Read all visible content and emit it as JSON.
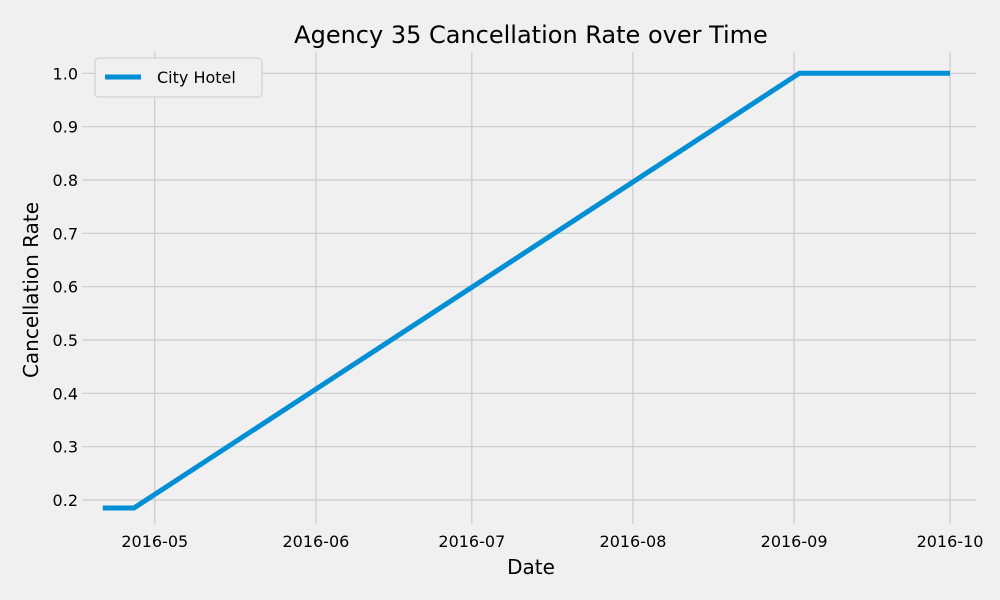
{
  "chart_data": {
    "type": "line",
    "title": "Agency 35 Cancellation Rate over Time",
    "xlabel": "Date",
    "ylabel": "Cancellation Rate",
    "x_ticks": [
      "2016-05",
      "2016-06",
      "2016-07",
      "2016-08",
      "2016-09",
      "2016-10"
    ],
    "y_ticks": [
      "0.2",
      "0.3",
      "0.4",
      "0.5",
      "0.6",
      "0.7",
      "0.8",
      "0.9",
      "1.0"
    ],
    "xlim": [
      "2016-04-17",
      "2016-10-06"
    ],
    "ylim": [
      0.155,
      1.04
    ],
    "grid": true,
    "legend_position": "top-left",
    "series": [
      {
        "name": "City Hotel",
        "color": "#008fd5",
        "x": [
          "2016-04-21",
          "2016-04-27",
          "2016-09-02",
          "2016-10-01"
        ],
        "y": [
          0.185,
          0.185,
          1.0,
          1.0
        ]
      }
    ]
  }
}
